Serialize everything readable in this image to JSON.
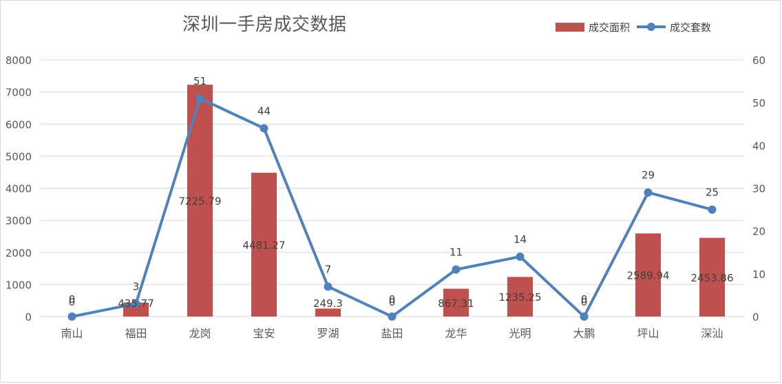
{
  "chart_data": {
    "type": "bar+line",
    "title": "深圳一手房成交数据",
    "categories": [
      "南山",
      "福田",
      "龙岗",
      "宝安",
      "罗湖",
      "盐田",
      "龙华",
      "光明",
      "大鹏",
      "坪山",
      "深汕"
    ],
    "series": [
      {
        "name": "成交面积",
        "type": "bar",
        "axis": "left",
        "color": "#c0504d",
        "values": [
          0,
          435.77,
          7225.79,
          4481.27,
          249.3,
          0,
          867.31,
          1235.25,
          0,
          2589.94,
          2453.86
        ],
        "labels": [
          "0",
          "435.77",
          "7225.79",
          "4481.27",
          "249.3",
          "0",
          "867.31",
          "1235.25",
          "0",
          "2589.94",
          "2453.86"
        ]
      },
      {
        "name": "成交套数",
        "type": "line",
        "axis": "right",
        "color": "#4f81bd",
        "values": [
          0,
          3,
          51,
          44,
          7,
          0,
          11,
          14,
          0,
          29,
          25
        ],
        "labels": [
          "0",
          "3",
          "51",
          "44",
          "7",
          "0",
          "11",
          "14",
          "0",
          "29",
          "25"
        ]
      }
    ],
    "y_left": {
      "min": 0,
      "max": 8000,
      "ticks": [
        "0",
        "1000",
        "2000",
        "3000",
        "4000",
        "5000",
        "6000",
        "7000",
        "8000"
      ]
    },
    "y_right": {
      "min": 0,
      "max": 60,
      "ticks": [
        "0",
        "10",
        "20",
        "30",
        "40",
        "50",
        "60"
      ]
    },
    "grid": true,
    "legend_position": "top-right"
  }
}
